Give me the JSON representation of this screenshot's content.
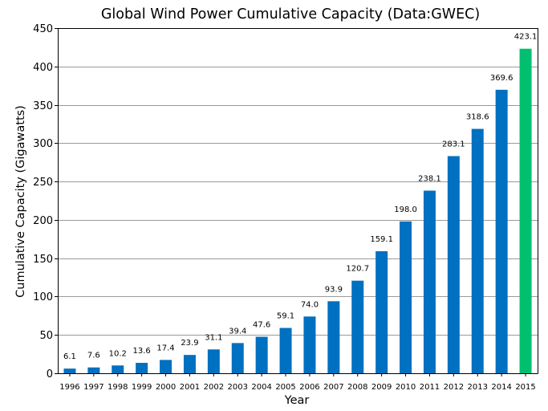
{
  "chart_data": {
    "type": "bar",
    "title": "Global Wind Power Cumulative Capacity (Data:GWEC)",
    "xlabel": "Year",
    "ylabel": "Cumulative Capacity (Gigawatts)",
    "ylim": [
      0,
      450
    ],
    "yticks": [
      "0",
      "50",
      "100",
      "150",
      "200",
      "250",
      "300",
      "350",
      "400",
      "450"
    ],
    "grid": true,
    "categories": [
      "1996",
      "1997",
      "1998",
      "1999",
      "2000",
      "2001",
      "2002",
      "2003",
      "2004",
      "2005",
      "2006",
      "2007",
      "2008",
      "2009",
      "2010",
      "2011",
      "2012",
      "2013",
      "2014",
      "2015"
    ],
    "values": [
      6.1,
      7.6,
      10.2,
      13.6,
      17.4,
      23.9,
      31.1,
      39.4,
      47.6,
      59.1,
      74.0,
      93.9,
      120.7,
      159.1,
      198.0,
      238.1,
      283.1,
      318.6,
      369.6,
      423.1
    ],
    "value_labels": [
      "6.1",
      "7.6",
      "10.2",
      "13.6",
      "17.4",
      "23.9",
      "31.1",
      "39.4",
      "47.6",
      "59.1",
      "74.0",
      "93.9",
      "120.7",
      "159.1",
      "198.0",
      "238.1",
      "283.1",
      "318.6",
      "369.6",
      "423.1"
    ],
    "colors": {
      "bar": "#0070c0",
      "highlight": "#00c070"
    },
    "highlight_category": "2015"
  }
}
